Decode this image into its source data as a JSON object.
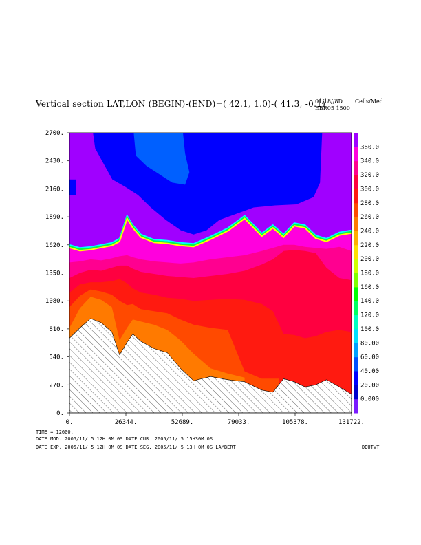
{
  "header": {
    "title": "Vertical section LAT,LON (BEGIN)-(END)=( 42.1,  1.0)-( 41.3, -0.1)",
    "date": "01/18//8D",
    "source": "EBR05 1500",
    "units": "Cells/Med"
  },
  "footer": {
    "time": "TIME =     12600.",
    "line1": "DATE MOD. 2005/11/ 5  12H 0M 0S   DATE CUR. 2005/11/ 5  15H30M 0S",
    "line2": "DATE EXP.  2005/11/ 5  12H 0M 0S   DATE SEG. 2005/11/ 5  13H 0M 0S   LAMBERT",
    "tag": "DDUTVT"
  },
  "chart_data": {
    "type": "heatmap",
    "title": "Vertical section LAT,LON (BEGIN)-(END)=( 42.1,  1.0)-( 41.3, -0.1)",
    "xlabel": "",
    "ylabel": "",
    "xlim": [
      0,
      131722
    ],
    "ylim": [
      0,
      2700
    ],
    "x_ticks": [
      "0.",
      "26344.",
      "52689.",
      "79033.",
      "105378.",
      "131722."
    ],
    "y_ticks": [
      "0.",
      "270.",
      "540.",
      "810.",
      "1080.",
      "1350.",
      "1620.",
      "1890.",
      "2160.",
      "2430.",
      "2700."
    ],
    "colorbar": {
      "labels": [
        "0.000",
        "20.00",
        "40.00",
        "60.00",
        "80.00",
        "100.0",
        "120.0",
        "140.0",
        "160.0",
        "180.0",
        "200.0",
        "220.0",
        "240.0",
        "260.0",
        "280.0",
        "300.0",
        "320.0",
        "340.0",
        "360.0"
      ],
      "colors": [
        "#7a1bff",
        "#0000cd",
        "#0000ff",
        "#0050ff",
        "#00a0ff",
        "#00e0ff",
        "#00ffc0",
        "#00ff60",
        "#00ff00",
        "#80ff00",
        "#d0ff00",
        "#ffe000",
        "#ffb000",
        "#ff7a00",
        "#ff4a00",
        "#ff1a10",
        "#ff0040",
        "#ff0090",
        "#ff00dd",
        "#a000ff"
      ]
    },
    "terrain": [
      [
        0,
        720
      ],
      [
        4900,
        820
      ],
      [
        9900,
        910
      ],
      [
        14800,
        870
      ],
      [
        19800,
        780
      ],
      [
        23400,
        560
      ],
      [
        26900,
        680
      ],
      [
        29600,
        760
      ],
      [
        33300,
        690
      ],
      [
        39500,
        620
      ],
      [
        45700,
        580
      ],
      [
        51800,
        430
      ],
      [
        58000,
        310
      ],
      [
        65900,
        350
      ],
      [
        73900,
        320
      ],
      [
        81800,
        300
      ],
      [
        89800,
        220
      ],
      [
        95000,
        200
      ],
      [
        100000,
        330
      ],
      [
        105000,
        300
      ],
      [
        110000,
        250
      ],
      [
        115000,
        270
      ],
      [
        120000,
        320
      ],
      [
        126000,
        250
      ],
      [
        131722,
        180
      ]
    ],
    "contours": [
      {
        "color": "#ff7a00",
        "line": [
          [
            0,
            820
          ],
          [
            4900,
            1010
          ],
          [
            9900,
            1120
          ],
          [
            14800,
            1090
          ],
          [
            19800,
            1020
          ],
          [
            23400,
            700
          ],
          [
            26900,
            820
          ],
          [
            29600,
            900
          ],
          [
            33300,
            880
          ],
          [
            39500,
            850
          ],
          [
            45700,
            800
          ],
          [
            51800,
            700
          ],
          [
            58000,
            570
          ],
          [
            65900,
            430
          ],
          [
            73900,
            380
          ],
          [
            81800,
            340
          ]
        ]
      },
      {
        "color": "#ff4a00",
        "line": [
          [
            0,
            1020
          ],
          [
            4900,
            1130
          ],
          [
            9900,
            1190
          ],
          [
            14800,
            1170
          ],
          [
            19800,
            1140
          ],
          [
            23400,
            1080
          ],
          [
            26900,
            1040
          ],
          [
            29600,
            1050
          ],
          [
            33300,
            1000
          ],
          [
            39500,
            980
          ],
          [
            45700,
            960
          ],
          [
            51800,
            900
          ],
          [
            58000,
            850
          ],
          [
            65900,
            820
          ],
          [
            73900,
            800
          ],
          [
            81800,
            400
          ],
          [
            89800,
            330
          ],
          [
            95000,
            330
          ],
          [
            98000,
            330
          ]
        ]
      },
      {
        "color": "#ff1a10",
        "line": [
          [
            0,
            1160
          ],
          [
            4900,
            1240
          ],
          [
            9900,
            1260
          ],
          [
            14800,
            1260
          ],
          [
            19800,
            1270
          ],
          [
            23400,
            1290
          ],
          [
            26900,
            1250
          ],
          [
            29600,
            1200
          ],
          [
            33300,
            1160
          ],
          [
            39500,
            1140
          ],
          [
            45700,
            1110
          ],
          [
            51800,
            1100
          ],
          [
            58000,
            1080
          ],
          [
            65900,
            1090
          ],
          [
            73900,
            1100
          ],
          [
            81800,
            1090
          ],
          [
            89800,
            1050
          ],
          [
            95000,
            980
          ],
          [
            100000,
            760
          ],
          [
            105000,
            750
          ],
          [
            110000,
            720
          ],
          [
            115000,
            740
          ],
          [
            120000,
            780
          ],
          [
            126000,
            800
          ],
          [
            131722,
            780
          ]
        ]
      },
      {
        "color": "#ff0040",
        "line": [
          [
            0,
            1300
          ],
          [
            4900,
            1350
          ],
          [
            9900,
            1380
          ],
          [
            14800,
            1370
          ],
          [
            19800,
            1400
          ],
          [
            23400,
            1420
          ],
          [
            26900,
            1420
          ],
          [
            29600,
            1390
          ],
          [
            33300,
            1360
          ],
          [
            39500,
            1340
          ],
          [
            45700,
            1320
          ],
          [
            51800,
            1310
          ],
          [
            58000,
            1300
          ],
          [
            65900,
            1320
          ],
          [
            73900,
            1340
          ],
          [
            81800,
            1370
          ],
          [
            89800,
            1430
          ],
          [
            95000,
            1480
          ],
          [
            100000,
            1560
          ],
          [
            105000,
            1570
          ],
          [
            110000,
            1560
          ],
          [
            115000,
            1540
          ],
          [
            120000,
            1400
          ],
          [
            126000,
            1300
          ],
          [
            131722,
            1280
          ]
        ]
      },
      {
        "color": "#ff0090",
        "line": [
          [
            0,
            1450
          ],
          [
            4900,
            1460
          ],
          [
            9900,
            1480
          ],
          [
            14800,
            1470
          ],
          [
            19800,
            1490
          ],
          [
            23400,
            1510
          ],
          [
            26900,
            1520
          ],
          [
            29600,
            1500
          ],
          [
            33300,
            1480
          ],
          [
            39500,
            1460
          ],
          [
            45700,
            1450
          ],
          [
            51800,
            1440
          ],
          [
            58000,
            1450
          ],
          [
            65900,
            1480
          ],
          [
            73900,
            1500
          ],
          [
            81800,
            1520
          ],
          [
            89800,
            1560
          ],
          [
            95000,
            1590
          ],
          [
            100000,
            1620
          ],
          [
            105000,
            1620
          ],
          [
            110000,
            1600
          ],
          [
            115000,
            1590
          ],
          [
            120000,
            1580
          ],
          [
            126000,
            1600
          ],
          [
            131722,
            1560
          ]
        ]
      },
      {
        "color": "#ff00dd",
        "line": [
          [
            0,
            1620
          ],
          [
            4900,
            1590
          ],
          [
            9900,
            1600
          ],
          [
            14800,
            1620
          ],
          [
            19800,
            1640
          ],
          [
            23400,
            1680
          ],
          [
            26900,
            1900
          ],
          [
            29600,
            1810
          ],
          [
            33300,
            1720
          ],
          [
            39500,
            1670
          ],
          [
            45700,
            1660
          ],
          [
            51800,
            1640
          ],
          [
            58000,
            1630
          ],
          [
            65900,
            1700
          ],
          [
            73900,
            1780
          ],
          [
            81800,
            1900
          ],
          [
            89800,
            1730
          ],
          [
            95000,
            1810
          ],
          [
            100000,
            1720
          ],
          [
            105000,
            1830
          ],
          [
            110000,
            1810
          ],
          [
            115000,
            1710
          ],
          [
            120000,
            1680
          ],
          [
            126000,
            1740
          ],
          [
            131722,
            1760
          ]
        ]
      }
    ],
    "hatched": true,
    "top_blue_zone": true
  }
}
